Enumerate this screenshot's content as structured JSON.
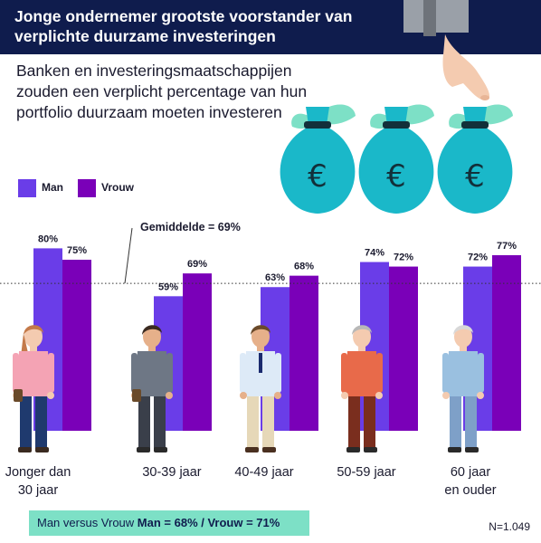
{
  "title": "Jonge ondernemer grootste voorstander van verplichte duurzame investeringen",
  "subtitle": "Banken en investeringsmaatschappijen zouden een verplicht percentage van hun portfolio duurzaam moeten investeren",
  "colors": {
    "man": "#6a3de8",
    "vrouw": "#7a00b8",
    "header": "#0f1c4d",
    "bag": "#1ab8c9",
    "leaf": "#7de0c6",
    "footer": "#7de0c6"
  },
  "icons": [
    "money-bag-icon",
    "euro-icon",
    "hand-icon",
    "person-icon"
  ],
  "chart_data": {
    "type": "bar",
    "categories": [
      "Jonger dan 30 jaar",
      "30-39 jaar",
      "40-49 jaar",
      "50-59 jaar",
      "60 jaar en ouder"
    ],
    "series": [
      {
        "name": "Man",
        "values": [
          80,
          59,
          63,
          74,
          72
        ]
      },
      {
        "name": "Vrouw",
        "values": [
          75,
          69,
          68,
          72,
          77
        ]
      }
    ],
    "value_labels": {
      "Man": [
        "80%",
        "59%",
        "63%",
        "74%",
        "72%"
      ],
      "Vrouw": [
        "75%",
        "69%",
        "68%",
        "72%",
        "77%"
      ]
    },
    "average": {
      "label": "Gemiddelde = 69%",
      "value": 69
    },
    "legend_position": "top-left",
    "title": "Jonge ondernemer grootste voorstander van verplichte duurzame investeringen",
    "xlabel": "",
    "ylabel": "",
    "ylim": [
      0,
      100
    ],
    "grid": false
  },
  "category_lines": [
    [
      "Jonger dan",
      "30 jaar"
    ],
    [
      "30-39 jaar"
    ],
    [
      "40-49 jaar"
    ],
    [
      "50-59 jaar"
    ],
    [
      "60 jaar",
      "en ouder"
    ]
  ],
  "footer": {
    "prefix": "Man versus Vrouw",
    "values": "Man = 68% / Vrouw = 71%"
  },
  "sample": "N=1.049",
  "euro_symbol": "€"
}
